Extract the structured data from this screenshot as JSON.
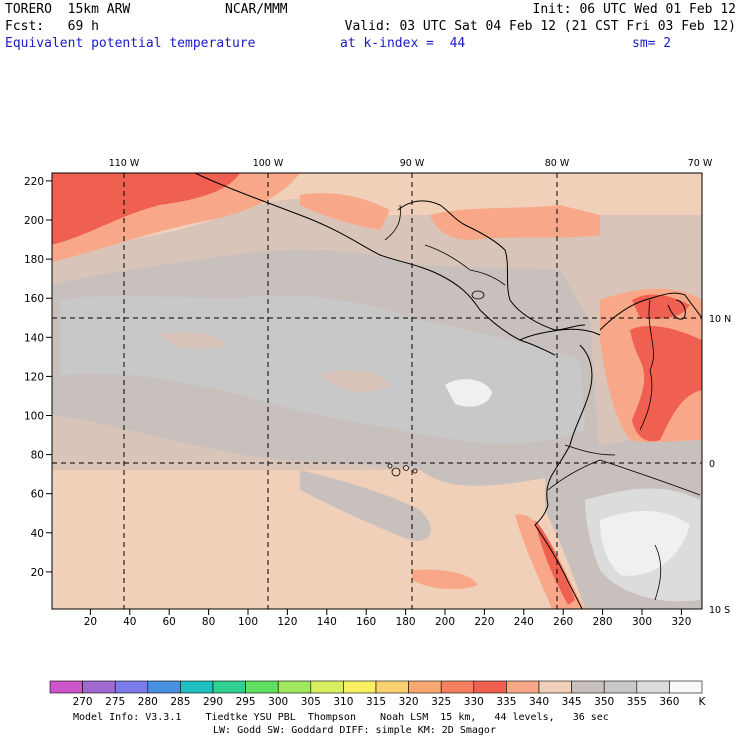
{
  "header": {
    "model": "TORERO  15km ARW",
    "org": "NCAR/MMM",
    "init": "Init: 06 UTC Wed 01 Feb 12",
    "fcst": "Fcst:   69 h",
    "valid": "Valid: 03 UTC Sat 04 Feb 12 (21 CST Fri 03 Feb 12)",
    "field": "Equivalent potential temperature",
    "level": "at k-index =  44",
    "smooth": "sm= 2"
  },
  "map": {
    "lon_labels": [
      "110 W",
      "100 W",
      "90 W",
      "80 W",
      "70 W"
    ],
    "lat_labels": [
      "10 N",
      "0",
      "10 S"
    ],
    "x_ticks": [
      "20",
      "40",
      "60",
      "80",
      "100",
      "120",
      "140",
      "160",
      "180",
      "200",
      "220",
      "240",
      "260",
      "280",
      "300",
      "320"
    ],
    "y_ticks": [
      "220",
      "200",
      "180",
      "160",
      "140",
      "120",
      "100",
      "80",
      "60",
      "40",
      "20"
    ],
    "colors": {
      "sea_warm": "#f0d0b8",
      "sea_mid": "#d8c4b8",
      "neutral": "#c8c0bc",
      "cool": "#c8c8c8",
      "very_cool": "#dcdcdc",
      "cold_patch": "#f0f0f0",
      "warm": "#f8a888",
      "hot": "#f06050",
      "coast": "#000000",
      "grid": "#000000"
    }
  },
  "colorbar": {
    "unit": "K",
    "labels": [
      "270",
      "275",
      "280",
      "285",
      "290",
      "295",
      "300",
      "305",
      "310",
      "315",
      "320",
      "325",
      "330",
      "335",
      "340",
      "345",
      "350",
      "355",
      "360"
    ],
    "colors": [
      "#cc55cc",
      "#a06ad0",
      "#7a7ae8",
      "#4a90e0",
      "#20c0c0",
      "#30d090",
      "#60e060",
      "#a0e860",
      "#d8f060",
      "#f8f060",
      "#f8d070",
      "#f8a870",
      "#f88060",
      "#f06050",
      "#f8a888",
      "#f0d0b8",
      "#c8c0bc",
      "#c8c8c8",
      "#dcdcdc",
      "#f8f8f8"
    ]
  },
  "footer": {
    "line1": "Model Info: V3.3.1    Tiedtke YSU PBL  Thompson    Noah LSM  15 km,   44 levels,   36 sec",
    "line2": "LW: Godd SW: Goddard DIFF: simple KM: 2D Smagor"
  }
}
